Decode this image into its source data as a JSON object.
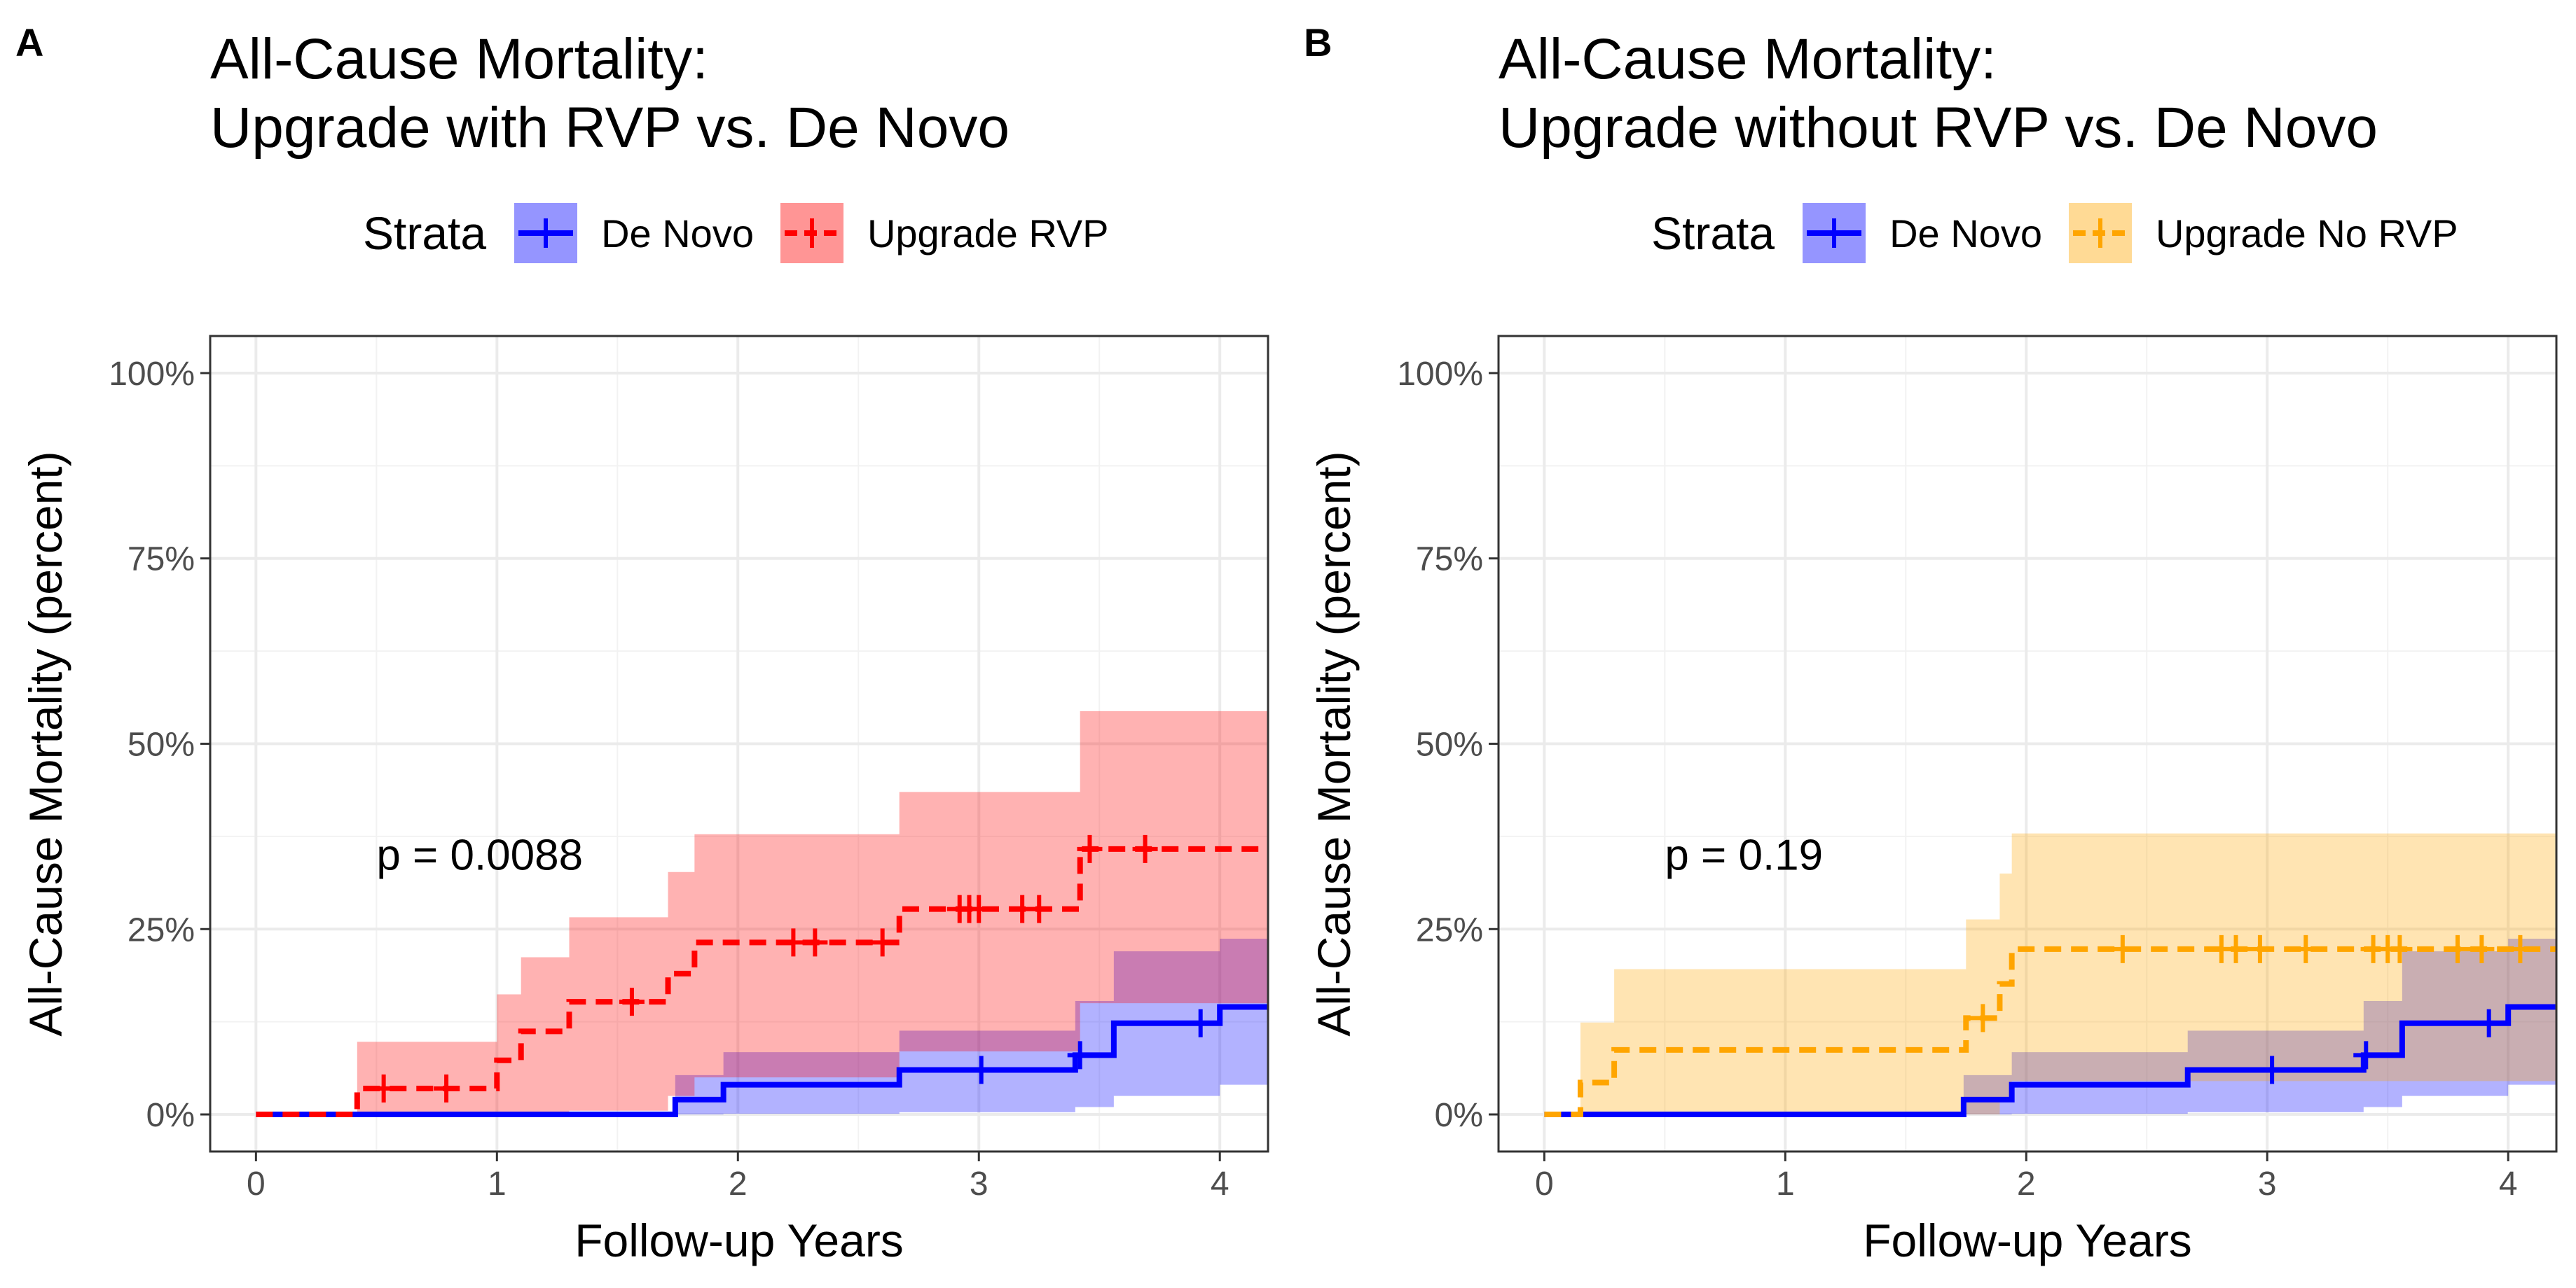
{
  "panels": [
    {
      "label": "A",
      "title_line1": "All-Cause Mortality:",
      "title_line2": "Upgrade with RVP vs. De Novo",
      "legend_title": "Strata",
      "legend_items": [
        {
          "label": "De Novo",
          "color": "#0000ff",
          "fill": "#7b7bff",
          "dashed": false
        },
        {
          "label": "Upgrade RVP",
          "color": "#ff0000",
          "fill": "#ff7b7b",
          "dashed": true
        }
      ],
      "p_value": "p = 0.0088"
    },
    {
      "label": "B",
      "title_line1": "All-Cause Mortality:",
      "title_line2": "Upgrade without RVP vs. De Novo",
      "legend_title": "Strata",
      "legend_items": [
        {
          "label": "De Novo",
          "color": "#0000ff",
          "fill": "#7b7bff",
          "dashed": false
        },
        {
          "label": "Upgrade No RVP",
          "color": "#ffa500",
          "fill": "#ffd27b",
          "dashed": true
        }
      ],
      "p_value": "p = 0.19"
    }
  ],
  "chart_data": [
    {
      "type": "line",
      "subtype": "kaplan-meier step (cumulative incidence)",
      "title": "All-Cause Mortality: Upgrade with RVP vs. De Novo",
      "xlabel": "Follow-up Years",
      "ylabel": "All-Cause Mortality (percent)",
      "xlim": [
        -0.19,
        4.2
      ],
      "ylim": [
        -5,
        105
      ],
      "x_ticks": [
        0,
        1,
        2,
        3,
        4
      ],
      "x_tick_labels": [
        "0",
        "1",
        "2",
        "3",
        "4"
      ],
      "y_ticks": [
        0,
        25,
        50,
        75,
        100
      ],
      "y_tick_labels": [
        "0%",
        "25%",
        "50%",
        "75%",
        "100%"
      ],
      "annotation": "p = 0.0088",
      "series": [
        {
          "name": "De Novo",
          "color": "#0000ff",
          "dashed": false,
          "steps": [
            [
              0,
              0
            ],
            [
              1.74,
              2.0
            ],
            [
              1.94,
              4.0
            ],
            [
              2.67,
              6.0
            ],
            [
              3.4,
              8.0
            ],
            [
              3.56,
              12.3
            ],
            [
              4.0,
              14.5
            ],
            [
              4.2,
              14.5
            ]
          ],
          "ci_lower": [
            [
              0,
              0
            ],
            [
              1.74,
              0
            ],
            [
              1.94,
              0.1
            ],
            [
              2.67,
              0.3
            ],
            [
              3.4,
              1.0
            ],
            [
              3.56,
              2.5
            ],
            [
              4.0,
              4.0
            ],
            [
              4.2,
              4.0
            ]
          ],
          "ci_upper": [
            [
              0,
              0
            ],
            [
              1.74,
              5.3
            ],
            [
              1.94,
              8.4
            ],
            [
              2.67,
              11.3
            ],
            [
              3.4,
              15.3
            ],
            [
              3.56,
              22.0
            ],
            [
              4.0,
              23.7
            ],
            [
              4.2,
              23.7
            ]
          ],
          "censor_x": [
            3.01,
            3.42,
            3.92
          ]
        },
        {
          "name": "Upgrade RVP",
          "color": "#ff0000",
          "dashed": true,
          "steps": [
            [
              0,
              0
            ],
            [
              0.42,
              3.5
            ],
            [
              1.0,
              7.3
            ],
            [
              1.1,
              11.2
            ],
            [
              1.3,
              15.2
            ],
            [
              1.71,
              19.0
            ],
            [
              1.82,
              23.2
            ],
            [
              2.67,
              27.7
            ],
            [
              3.42,
              35.8
            ],
            [
              4.2,
              35.8
            ]
          ],
          "ci_lower": [
            [
              0,
              0
            ],
            [
              0.42,
              0
            ],
            [
              1.0,
              0
            ],
            [
              1.1,
              0
            ],
            [
              1.3,
              0.5
            ],
            [
              1.71,
              2.5
            ],
            [
              1.82,
              5.0
            ],
            [
              2.67,
              8.5
            ],
            [
              3.42,
              15.0
            ],
            [
              4.2,
              15.0
            ]
          ],
          "ci_upper": [
            [
              0,
              0
            ],
            [
              0.42,
              9.8
            ],
            [
              1.0,
              16.2
            ],
            [
              1.1,
              21.2
            ],
            [
              1.3,
              26.6
            ],
            [
              1.71,
              32.7
            ],
            [
              1.82,
              37.8
            ],
            [
              2.67,
              43.5
            ],
            [
              3.42,
              54.4
            ],
            [
              4.2,
              54.4
            ]
          ],
          "censor_x": [
            0.53,
            0.79,
            1.56,
            2.23,
            2.32,
            2.6,
            2.92,
            2.96,
            3.0,
            3.18,
            3.25,
            3.46,
            3.69
          ]
        }
      ]
    },
    {
      "type": "line",
      "subtype": "kaplan-meier step (cumulative incidence)",
      "title": "All-Cause Mortality: Upgrade without RVP vs. De Novo",
      "xlabel": "Follow-up Years",
      "ylabel": "All-Cause Mortality (percent)",
      "xlim": [
        -0.19,
        4.2
      ],
      "ylim": [
        -5,
        105
      ],
      "x_ticks": [
        0,
        1,
        2,
        3,
        4
      ],
      "x_tick_labels": [
        "0",
        "1",
        "2",
        "3",
        "4"
      ],
      "y_ticks": [
        0,
        25,
        50,
        75,
        100
      ],
      "y_tick_labels": [
        "0%",
        "25%",
        "50%",
        "75%",
        "100%"
      ],
      "annotation": "p = 0.19",
      "series": [
        {
          "name": "De Novo",
          "color": "#0000ff",
          "dashed": false,
          "steps": [
            [
              0,
              0
            ],
            [
              1.74,
              2.0
            ],
            [
              1.94,
              4.0
            ],
            [
              2.67,
              6.0
            ],
            [
              3.4,
              8.0
            ],
            [
              3.56,
              12.3
            ],
            [
              4.0,
              14.5
            ],
            [
              4.2,
              14.5
            ]
          ],
          "ci_lower": [
            [
              0,
              0
            ],
            [
              1.74,
              0
            ],
            [
              1.94,
              0.1
            ],
            [
              2.67,
              0.3
            ],
            [
              3.4,
              1.0
            ],
            [
              3.56,
              2.5
            ],
            [
              4.0,
              4.0
            ],
            [
              4.2,
              4.0
            ]
          ],
          "ci_upper": [
            [
              0,
              0
            ],
            [
              1.74,
              5.3
            ],
            [
              1.94,
              8.4
            ],
            [
              2.67,
              11.3
            ],
            [
              3.4,
              15.3
            ],
            [
              3.56,
              22.0
            ],
            [
              4.0,
              23.7
            ],
            [
              4.2,
              23.7
            ]
          ],
          "censor_x": [
            3.02,
            3.41,
            3.92
          ]
        },
        {
          "name": "Upgrade No RVP",
          "color": "#ffa500",
          "dashed": true,
          "steps": [
            [
              0,
              0
            ],
            [
              0.15,
              4.3
            ],
            [
              0.29,
              8.7
            ],
            [
              1.75,
              13.0
            ],
            [
              1.89,
              17.6
            ],
            [
              1.94,
              22.3
            ],
            [
              4.2,
              22.3
            ]
          ],
          "ci_lower": [
            [
              0,
              0
            ],
            [
              0.15,
              0
            ],
            [
              0.29,
              0
            ],
            [
              1.75,
              0
            ],
            [
              1.89,
              2.0
            ],
            [
              1.94,
              4.5
            ],
            [
              4.2,
              4.5
            ]
          ],
          "ci_upper": [
            [
              0,
              0
            ],
            [
              0.15,
              12.4
            ],
            [
              0.29,
              19.6
            ],
            [
              1.75,
              26.3
            ],
            [
              1.89,
              32.5
            ],
            [
              1.94,
              37.9
            ],
            [
              4.2,
              37.9
            ]
          ],
          "censor_x": [
            1.82,
            2.4,
            2.81,
            2.87,
            2.97,
            3.16,
            3.44,
            3.5,
            3.55,
            3.79,
            3.89,
            4.05
          ]
        }
      ]
    }
  ]
}
